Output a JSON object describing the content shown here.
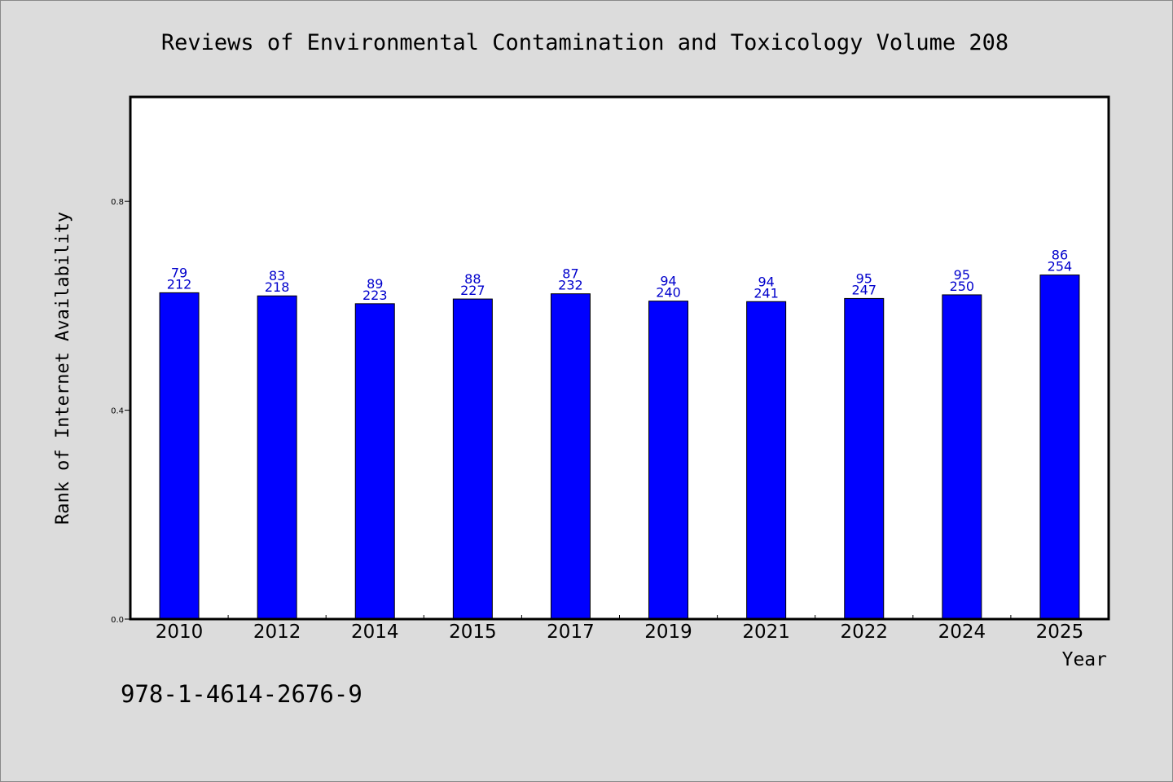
{
  "isbn": "978-1-4614-2676-9",
  "chart_data": {
    "type": "bar",
    "title": "Reviews of Environmental Contamination and Toxicology Volume 208",
    "xlabel": "Year",
    "ylabel": "Rank of Internet Availability",
    "categories": [
      "2010",
      "2012",
      "2014",
      "2015",
      "2017",
      "2019",
      "2021",
      "2022",
      "2024",
      "2025"
    ],
    "values": [
      0.625,
      0.619,
      0.604,
      0.613,
      0.623,
      0.609,
      0.608,
      0.614,
      0.621,
      0.659
    ],
    "top_labels": [
      "79",
      "83",
      "89",
      "88",
      "87",
      "94",
      "94",
      "95",
      "95",
      "86"
    ],
    "bottom_labels": [
      "212",
      "218",
      "223",
      "227",
      "232",
      "240",
      "241",
      "247",
      "250",
      "254"
    ],
    "ylim": [
      0,
      1.0
    ],
    "yticks": [
      0.0,
      0.4,
      0.8
    ],
    "ytick_labels": [
      "0.0",
      "0.4",
      "0.8"
    ],
    "grid": false,
    "colors": {
      "bar": "#0000ff",
      "label": "#0000cc",
      "background": "#dcdcdc",
      "plot": "#ffffff"
    }
  }
}
